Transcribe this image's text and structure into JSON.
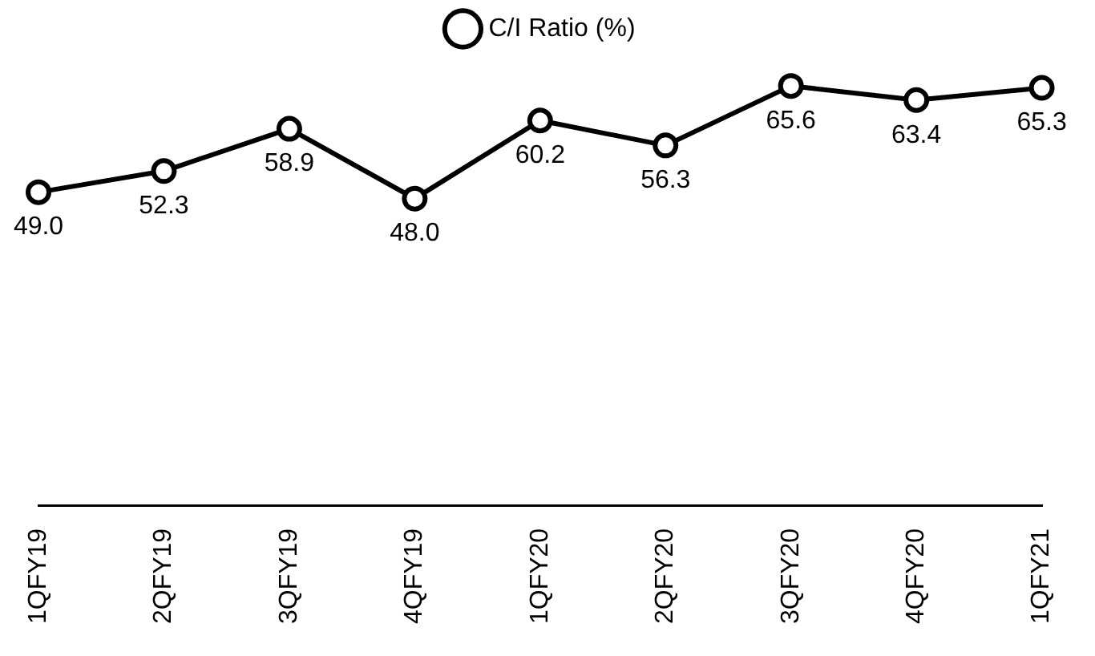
{
  "chart_data": {
    "type": "line",
    "categories": [
      "1QFY19",
      "2QFY19",
      "3QFY19",
      "4QFY19",
      "1QFY20",
      "2QFY20",
      "3QFY20",
      "4QFY20",
      "1QFY21"
    ],
    "series": [
      {
        "name": "C/I Ratio (%)",
        "color": "#000000",
        "values": [
          49.0,
          52.3,
          58.9,
          48.0,
          60.2,
          56.3,
          65.6,
          63.4,
          65.3
        ],
        "value_labels": [
          "49.0",
          "52.3",
          "58.9",
          "48.0",
          "60.2",
          "56.3",
          "65.6",
          "63.4",
          "65.3"
        ]
      }
    ],
    "legend": "top",
    "grid": false,
    "marker": "circle",
    "line_style": "solid"
  }
}
